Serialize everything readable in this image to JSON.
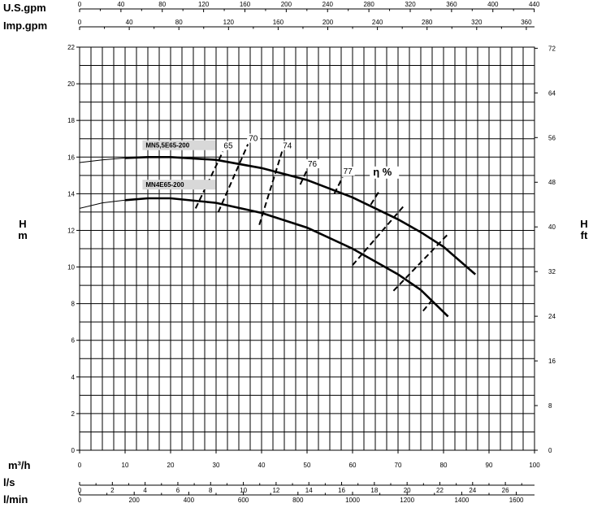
{
  "chart_data": {
    "type": "line",
    "x_primary": {
      "label": "m³/h",
      "range": [
        0,
        100
      ],
      "ticks": [
        0,
        10,
        20,
        30,
        40,
        50,
        60,
        70,
        80,
        90,
        100
      ]
    },
    "x_secondary_axes": [
      {
        "position": "bottom",
        "label": "l/s",
        "range": [
          0,
          27.78
        ],
        "ticks": [
          0,
          2,
          4,
          6,
          8,
          10,
          12,
          14,
          16,
          18,
          20,
          22,
          24,
          26
        ]
      },
      {
        "position": "bottom",
        "label": "l/min",
        "range": [
          0,
          1666.7
        ],
        "ticks": [
          0,
          200,
          400,
          600,
          800,
          1000,
          1200,
          1400,
          1600
        ]
      },
      {
        "position": "top",
        "label": "U.S.gpm",
        "range": [
          0,
          440.3
        ],
        "ticks": [
          0,
          40,
          80,
          120,
          160,
          200,
          240,
          280,
          320,
          360,
          400,
          440
        ]
      },
      {
        "position": "top",
        "label": "Imp.gpm",
        "range": [
          0,
          366.6
        ],
        "ticks": [
          0,
          40,
          80,
          120,
          160,
          200,
          240,
          280,
          320,
          360
        ]
      }
    ],
    "y_left": {
      "label": "H",
      "unit": "m",
      "range": [
        0,
        22
      ],
      "ticks": [
        0,
        2,
        4,
        6,
        8,
        10,
        12,
        14,
        16,
        18,
        20,
        22
      ]
    },
    "y_right": {
      "label": "H",
      "unit": "ft",
      "range": [
        0,
        72.2
      ],
      "ticks": [
        0,
        8,
        16,
        24,
        32,
        40,
        48,
        56,
        64,
        72
      ]
    },
    "grid": true,
    "series": [
      {
        "name": "MN5,5E65-200",
        "points": [
          [
            0,
            15.7
          ],
          [
            5,
            15.85
          ],
          [
            10,
            15.95
          ],
          [
            15,
            16.0
          ],
          [
            20,
            16.0
          ],
          [
            30,
            15.85
          ],
          [
            40,
            15.4
          ],
          [
            50,
            14.75
          ],
          [
            60,
            13.8
          ],
          [
            70,
            12.6
          ],
          [
            75,
            11.9
          ],
          [
            80,
            11.1
          ],
          [
            87,
            9.6
          ]
        ]
      },
      {
        "name": "MN4E65-200",
        "points": [
          [
            0,
            13.2
          ],
          [
            5,
            13.5
          ],
          [
            10,
            13.65
          ],
          [
            15,
            13.75
          ],
          [
            20,
            13.75
          ],
          [
            30,
            13.5
          ],
          [
            40,
            12.95
          ],
          [
            50,
            12.15
          ],
          [
            60,
            11.0
          ],
          [
            70,
            9.6
          ],
          [
            75,
            8.75
          ],
          [
            81,
            7.3
          ]
        ]
      }
    ],
    "efficiency": {
      "label": "η %",
      "lines": [
        {
          "value": "65",
          "from": [
            25.5,
            13.2
          ],
          "to": [
            31.5,
            16.3
          ]
        },
        {
          "value": "70",
          "from": [
            30.5,
            13.0
          ],
          "to": [
            37.0,
            16.7
          ]
        },
        {
          "value": "74",
          "from": [
            39.5,
            12.3
          ],
          "to": [
            44.5,
            16.3
          ]
        },
        {
          "value": "76",
          "from": [
            48.5,
            14.5
          ],
          "to": [
            50.0,
            15.3
          ]
        },
        {
          "value": "77",
          "from": [
            56.0,
            14.0
          ],
          "to": [
            57.8,
            14.9
          ]
        },
        {
          "value": "77",
          "from": [
            64.0,
            13.4
          ],
          "to": [
            66.0,
            14.2
          ]
        },
        {
          "value": "76",
          "from": [
            60.0,
            10.1
          ],
          "to": [
            71.5,
            13.4
          ]
        },
        {
          "value": "74",
          "from": [
            69.0,
            8.7
          ],
          "to": [
            81.0,
            11.8
          ]
        },
        {
          "value": "70",
          "from": [
            75.5,
            7.6
          ],
          "to": [
            77.5,
            8.2
          ]
        }
      ]
    }
  }
}
